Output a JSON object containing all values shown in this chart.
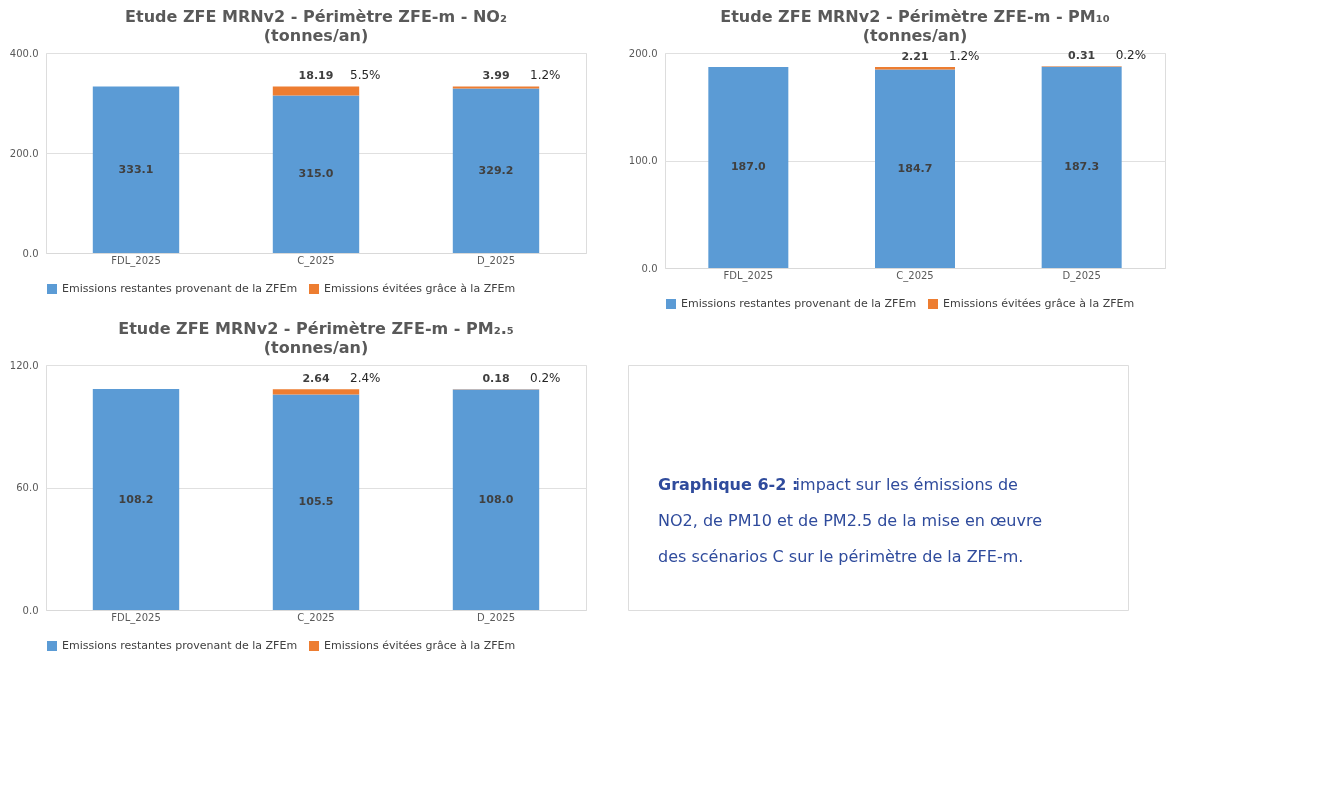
{
  "chart_data": [
    {
      "type": "bar",
      "stacked": true,
      "title": "Etude ZFE MRNv2 - Périmètre ZFE-m - NO₂",
      "subtitle": "(tonnes/an)",
      "categories": [
        "FDL_2025",
        "C_2025",
        "D_2025"
      ],
      "series": [
        {
          "name": "Emissions restantes provenant de la ZFEm",
          "color": "#5b9bd5",
          "values": [
            333.1,
            315.0,
            329.2
          ],
          "value_labels": [
            "333.1",
            "315.0",
            "329.2"
          ]
        },
        {
          "name": "Emissions évitées grâce à la ZFEm",
          "color": "#ed7d31",
          "values": [
            null,
            18.19,
            3.99
          ],
          "value_labels": [
            null,
            "18.19",
            "3.99"
          ]
        }
      ],
      "annotations": [
        "5.5%",
        "1.2%"
      ],
      "ylim": [
        0,
        400
      ],
      "yticks": [
        {
          "value": 0,
          "label": "0.0"
        },
        {
          "value": 200,
          "label": "200.0"
        },
        {
          "value": 400,
          "label": "400.0"
        }
      ],
      "grid": "y",
      "legend": "bottom"
    },
    {
      "type": "bar",
      "stacked": true,
      "title": "Etude ZFE MRNv2 - Périmètre ZFE-m - PM₁₀",
      "subtitle": "(tonnes/an)",
      "categories": [
        "FDL_2025",
        "C_2025",
        "D_2025"
      ],
      "series": [
        {
          "name": "Emissions restantes provenant de la ZFEm",
          "color": "#5b9bd5",
          "values": [
            187.0,
            184.7,
            187.3
          ],
          "value_labels": [
            "187.0",
            "184.7",
            "187.3"
          ]
        },
        {
          "name": "Emissions évitées grâce à la ZFEm",
          "color": "#ed7d31",
          "values": [
            null,
            2.21,
            0.31
          ],
          "value_labels": [
            null,
            "2.21",
            "0.31"
          ]
        }
      ],
      "annotations": [
        "1.2%",
        "0.2%"
      ],
      "ylim": [
        0,
        200
      ],
      "yticks": [
        {
          "value": 0,
          "label": "0.0"
        },
        {
          "value": 100,
          "label": "100.0"
        },
        {
          "value": 200,
          "label": "200.0"
        }
      ],
      "grid": "y",
      "legend": "bottom"
    },
    {
      "type": "bar",
      "stacked": true,
      "title": "Etude ZFE MRNv2 - Périmètre ZFE-m - PM₂.₅",
      "subtitle": "(tonnes/an)",
      "categories": [
        "FDL_2025",
        "C_2025",
        "D_2025"
      ],
      "series": [
        {
          "name": "Emissions restantes provenant de la ZFEm",
          "color": "#5b9bd5",
          "values": [
            108.2,
            105.5,
            108.0
          ],
          "value_labels": [
            "108.2",
            "105.5",
            "108.0"
          ]
        },
        {
          "name": "Emissions évitées grâce à la ZFEm",
          "color": "#ed7d31",
          "values": [
            null,
            2.64,
            0.18
          ],
          "value_labels": [
            null,
            "2.64",
            "0.18"
          ]
        }
      ],
      "annotations": [
        "2.4%",
        "0.2%"
      ],
      "ylim": [
        0,
        120
      ],
      "yticks": [
        {
          "value": 0,
          "label": "0.0"
        },
        {
          "value": 60,
          "label": "60.0"
        },
        {
          "value": 120,
          "label": "120.0"
        }
      ],
      "grid": "y",
      "legend": "bottom"
    },
    {
      "type": "other",
      "annotations": [
        "Graphique 6-2 :",
        "impact sur les émissions de NO2, de PM10 et de PM2.5 de la mise en œuvre des scénarios C sur le périmètre de la ZFE-m."
      ]
    }
  ]
}
